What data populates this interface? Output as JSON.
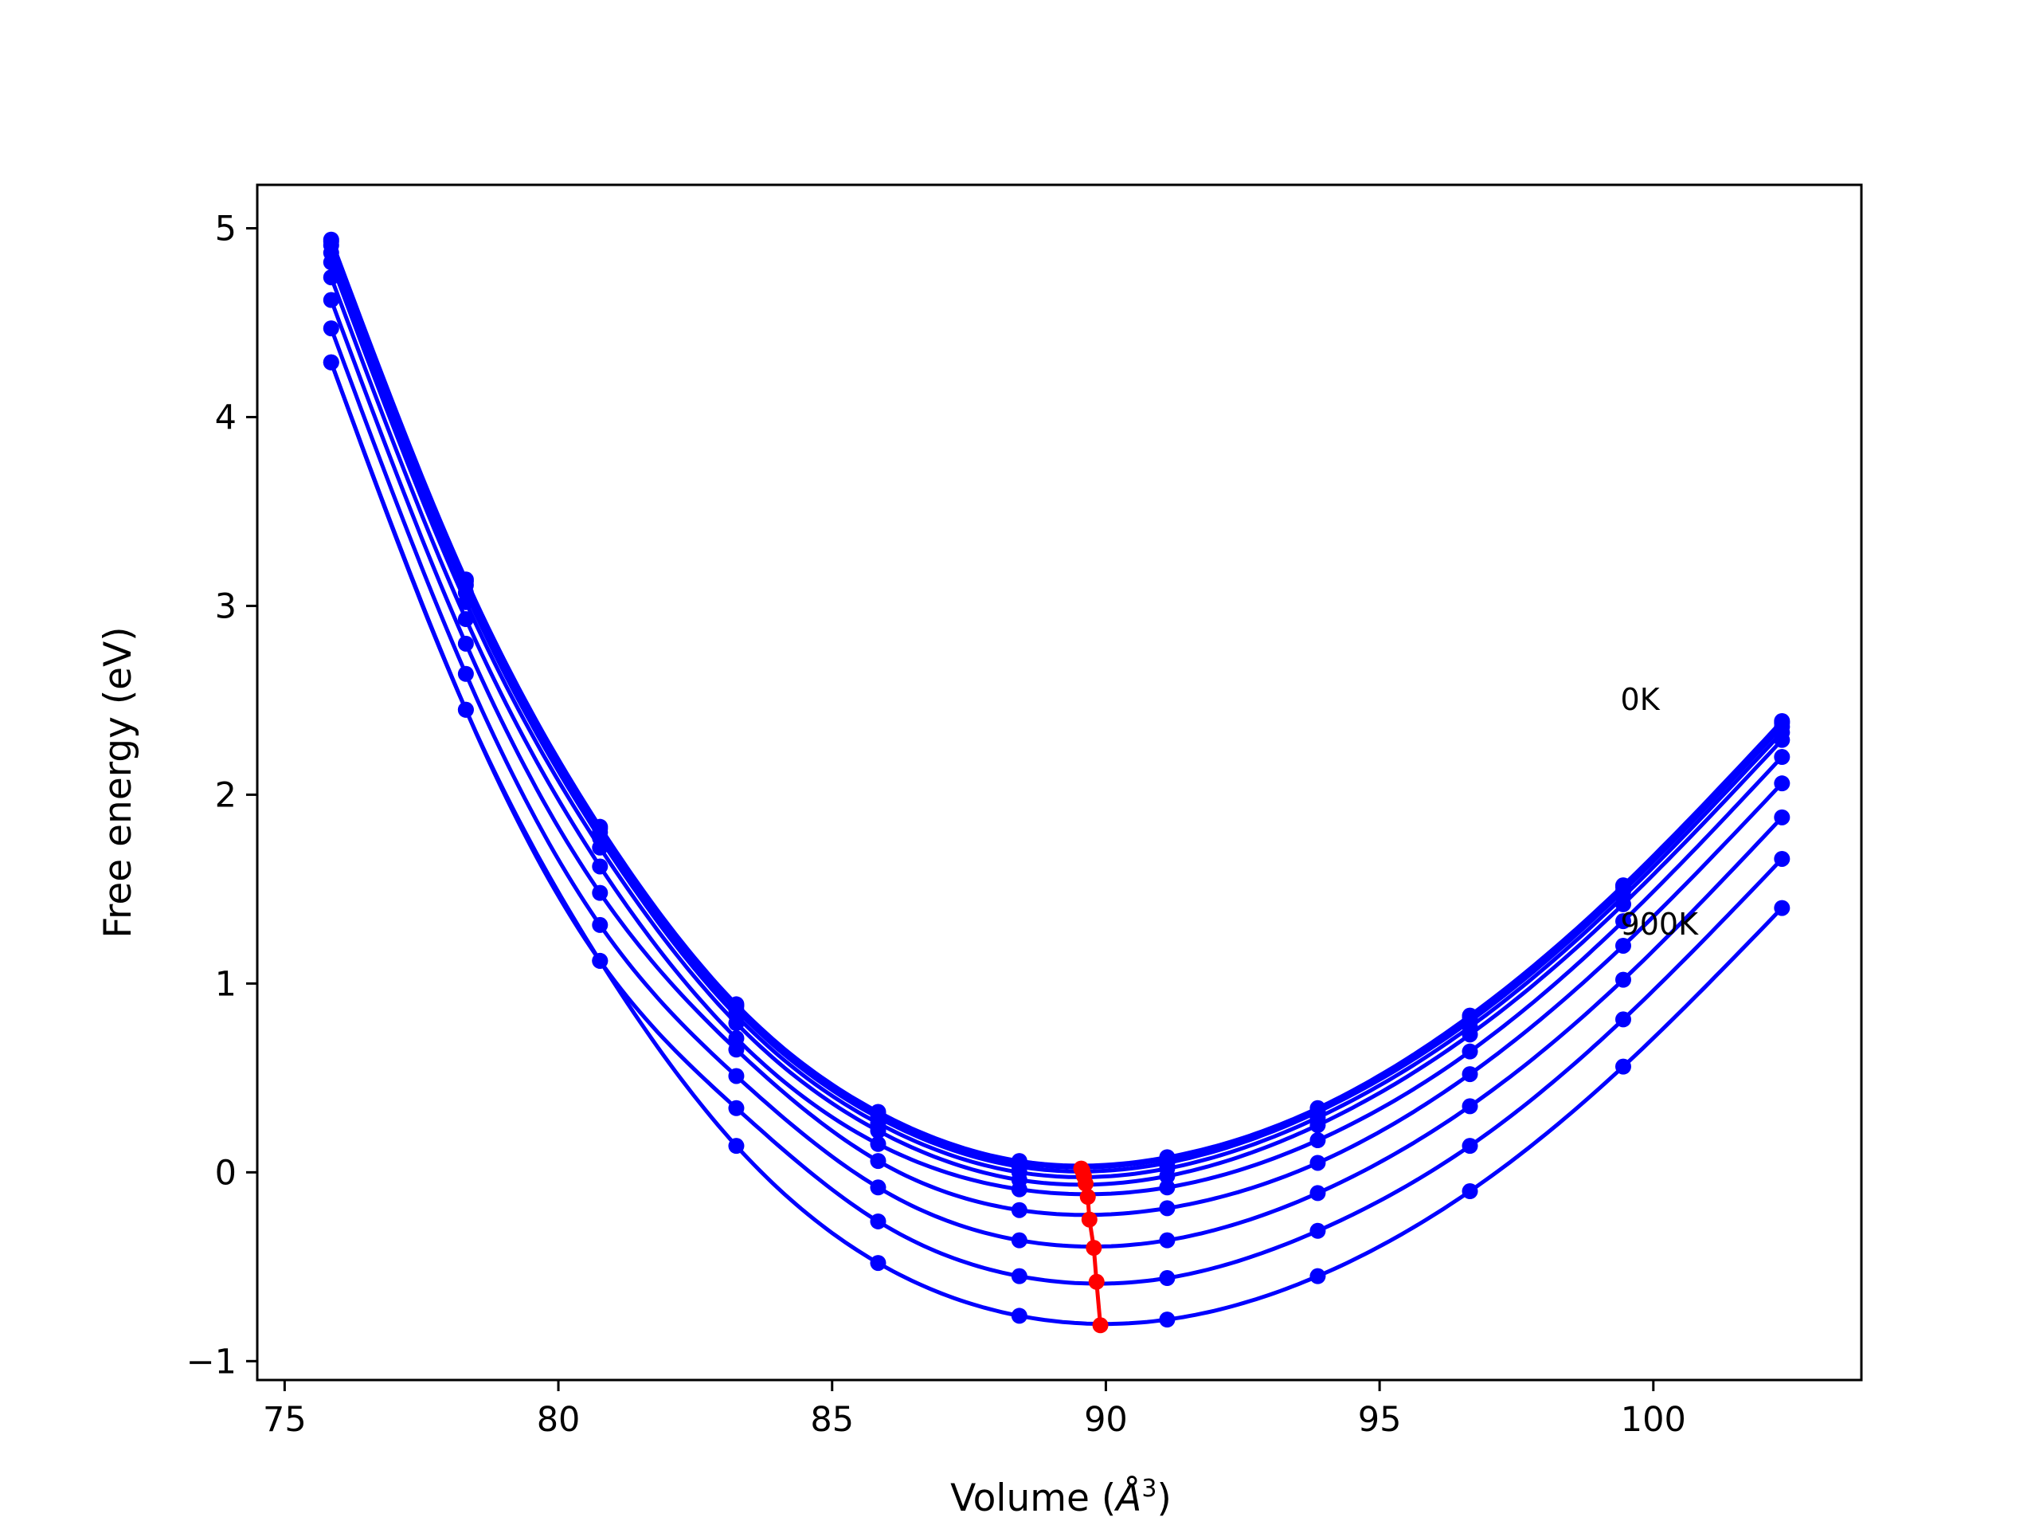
{
  "chart_data": {
    "type": "line",
    "title": "",
    "xlabel": "Volume (",
    "xlabel_symbol": "Å",
    "xlabel_exponent": "3",
    "xlabel_close": ")",
    "ylabel": "Free energy (eV)",
    "xlim": [
      74.5,
      103.8
    ],
    "ylim": [
      -1.1,
      5.23
    ],
    "xticks": [
      75,
      80,
      85,
      90,
      95,
      100
    ],
    "xtick_labels": [
      "75",
      "80",
      "85",
      "90",
      "95",
      "100"
    ],
    "yticks": [
      -1,
      0,
      1,
      2,
      3,
      4,
      5
    ],
    "ytick_labels": [
      "−1",
      "0",
      "1",
      "2",
      "3",
      "4",
      "5"
    ],
    "grid": false,
    "curve_color": "#0000ff",
    "min_line_color": "#ff0000",
    "x": [
      75.85,
      78.31,
      80.76,
      83.25,
      85.84,
      88.42,
      91.12,
      93.87,
      96.65,
      99.45,
      102.35
    ],
    "series": [
      {
        "values": [
          4.94,
          3.14,
          1.83,
          0.89,
          0.32,
          0.06,
          0.08,
          0.34,
          0.83,
          1.52,
          2.39
        ]
      },
      {
        "values": [
          4.93,
          3.13,
          1.82,
          0.88,
          0.31,
          0.05,
          0.07,
          0.33,
          0.82,
          1.51,
          2.38
        ]
      },
      {
        "values": [
          4.91,
          3.11,
          1.8,
          0.86,
          0.29,
          0.03,
          0.05,
          0.32,
          0.8,
          1.49,
          2.36
        ]
      },
      {
        "values": [
          4.87,
          3.07,
          1.77,
          0.83,
          0.26,
          0.0,
          0.02,
          0.29,
          0.77,
          1.46,
          2.33
        ]
      },
      {
        "values": [
          4.82,
          3.02,
          1.72,
          0.79,
          0.22,
          -0.04,
          -0.02,
          0.25,
          0.73,
          1.42,
          2.29
        ]
      },
      {
        "values": [
          4.74,
          2.93,
          1.62,
          0.71,
          0.15,
          -0.09,
          -0.08,
          0.17,
          0.64,
          1.33,
          2.2
        ]
      },
      {
        "values": [
          4.62,
          2.8,
          1.48,
          0.65,
          0.06,
          -0.2,
          -0.19,
          0.05,
          0.52,
          1.2,
          2.06
        ]
      },
      {
        "values": [
          4.47,
          2.64,
          1.31,
          0.51,
          -0.08,
          -0.36,
          -0.36,
          -0.11,
          0.35,
          1.02,
          1.88
        ]
      },
      {
        "values": [
          4.29,
          2.45,
          1.12,
          0.34,
          -0.26,
          -0.55,
          -0.56,
          -0.31,
          0.14,
          0.81,
          1.66
        ]
      },
      {
        "values": [
          4.29,
          2.45,
          1.12,
          0.14,
          -0.48,
          -0.76,
          -0.78,
          -0.55,
          -0.1,
          0.56,
          1.4
        ]
      }
    ],
    "minima": {
      "x": [
        89.55,
        89.57,
        89.6,
        89.63,
        89.67,
        89.7,
        89.78,
        89.83,
        89.9
      ],
      "y": [
        0.02,
        0.01,
        -0.02,
        -0.06,
        -0.13,
        -0.25,
        -0.4,
        -0.58,
        -0.81
      ]
    },
    "annotations": [
      {
        "text": "0K",
        "x": 99.4,
        "y": 2.45
      },
      {
        "text": "900K",
        "x": 99.4,
        "y": 1.26
      }
    ]
  }
}
